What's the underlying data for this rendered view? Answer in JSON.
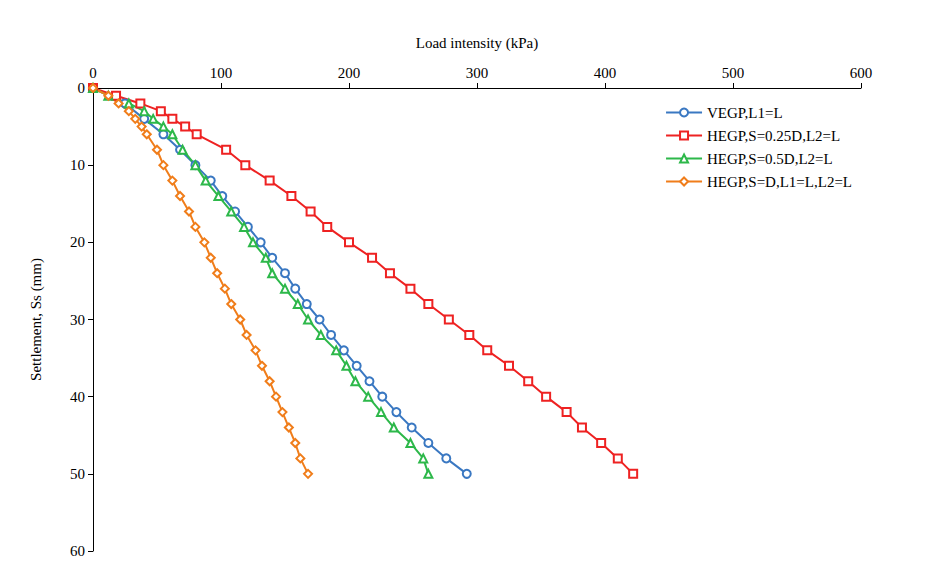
{
  "chart_data": {
    "type": "line",
    "x_label": "Load intensity (kPa)",
    "y_label": "Settlement, Ss (mm)",
    "xlim": [
      0,
      600
    ],
    "xticks": [
      0,
      100,
      200,
      300,
      400,
      500,
      600
    ],
    "ylim": [
      0,
      60
    ],
    "yticks": [
      0,
      10,
      20,
      30,
      40,
      50,
      60
    ],
    "grid": false,
    "legend": "upper right",
    "series": [
      {
        "name": "VEGP,L1=L",
        "color": "#3A78C2",
        "marker": "circle",
        "line_style": "solid",
        "x": [
          0,
          25,
          40,
          55,
          68,
          80,
          92,
          101,
          111,
          121,
          131,
          140,
          150,
          158,
          167,
          177,
          186,
          196,
          206,
          216,
          226,
          237,
          249,
          262,
          276,
          292
        ],
        "values": [
          0,
          2,
          4,
          6,
          8,
          10,
          12,
          14,
          16,
          18,
          20,
          22,
          24,
          26,
          28,
          30,
          32,
          34,
          36,
          38,
          40,
          42,
          44,
          46,
          48,
          50
        ]
      },
      {
        "name": "HEGP,S=0.25D,L2=L",
        "color": "#EE2222",
        "marker": "square",
        "line_style": "solid",
        "x": [
          0,
          18,
          37,
          53,
          62,
          72,
          81,
          104,
          119,
          138,
          155,
          170,
          183,
          200,
          218,
          232,
          248,
          262,
          278,
          294,
          308,
          325,
          340,
          354,
          370,
          382,
          397,
          410,
          422
        ],
        "values": [
          0,
          1,
          2,
          3,
          4,
          5,
          6,
          8,
          10,
          12,
          14,
          16,
          18,
          20,
          22,
          24,
          26,
          28,
          30,
          32,
          34,
          36,
          38,
          40,
          42,
          44,
          46,
          48,
          50
        ]
      },
      {
        "name": "HEGP,S=0.5D,L2=L",
        "color": "#2DB84A",
        "marker": "triangle",
        "line_style": "solid",
        "x": [
          0,
          12,
          28,
          40,
          47,
          55,
          62,
          70,
          80,
          88,
          98,
          108,
          118,
          125,
          135,
          140,
          150,
          160,
          168,
          178,
          190,
          198,
          205,
          215,
          225,
          235,
          248,
          258,
          262
        ],
        "values": [
          0,
          1,
          2,
          3,
          4,
          5,
          6,
          8,
          10,
          12,
          14,
          16,
          18,
          20,
          22,
          24,
          26,
          28,
          30,
          32,
          34,
          36,
          38,
          40,
          42,
          44,
          46,
          48,
          50
        ]
      },
      {
        "name": "HEGP,S=D,L1=L,L2=L",
        "color": "#F07D1A",
        "marker": "diamond",
        "line_style": "solid",
        "x": [
          0,
          12,
          20,
          28,
          33,
          38,
          42,
          50,
          55,
          62,
          68,
          75,
          80,
          87,
          92,
          97,
          103,
          108,
          115,
          120,
          127,
          132,
          138,
          143,
          148,
          153,
          158,
          162,
          168
        ],
        "values": [
          0,
          1,
          2,
          3,
          4,
          5,
          6,
          8,
          10,
          12,
          14,
          16,
          18,
          20,
          22,
          24,
          26,
          28,
          30,
          32,
          34,
          36,
          38,
          40,
          42,
          44,
          46,
          48,
          50
        ]
      }
    ]
  }
}
